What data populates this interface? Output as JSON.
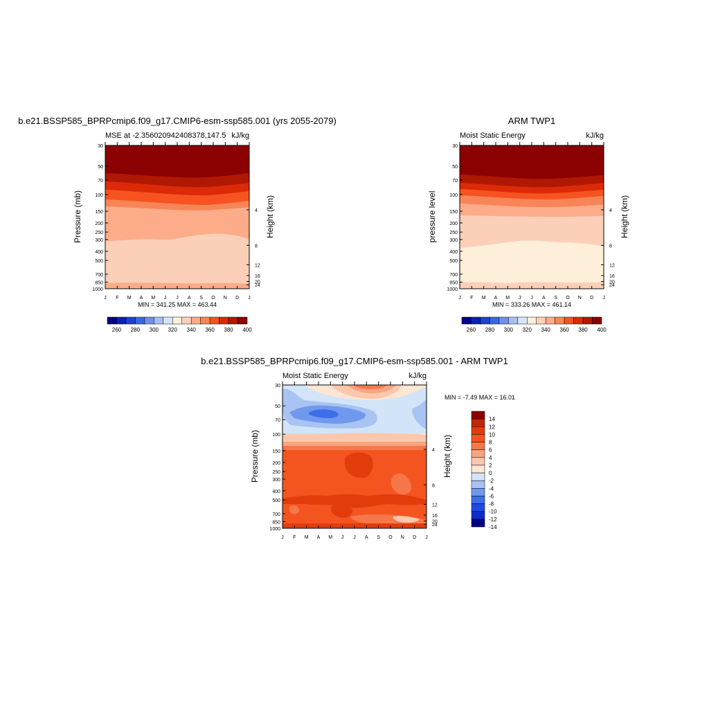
{
  "palette": {
    "model": [
      "#00008b",
      "#0a20b8",
      "#1c40d8",
      "#3a68e0",
      "#6f90e8",
      "#a6bff0",
      "#d5e6f8",
      "#feefdb",
      "#fcd0b8",
      "#fcac88",
      "#f88557",
      "#f65320",
      "#dc2a08",
      "#b01803",
      "#8b0000"
    ],
    "diff": [
      "#00008b",
      "#0c2dc8",
      "#1c4be6",
      "#3d6de8",
      "#7099ee",
      "#a9c3f2",
      "#d2e4f8",
      "#fde6d3",
      "#fbc8ad",
      "#f9a57f",
      "#f6784a",
      "#f45520",
      "#e33c0c",
      "#c02706",
      "#8b0000"
    ]
  },
  "months": [
    "J",
    "F",
    "M",
    "A",
    "M",
    "J",
    "J",
    "A",
    "S",
    "O",
    "N",
    "D",
    "J"
  ],
  "panels": [
    {
      "id": "model",
      "title": "b.e21.BSSP585_BPRPcmip6.f09_g17.CMIP6-esm-ssp585.001 (yrs 2055-2079)",
      "left_label": "MSE at -2.356020942408378,147.5",
      "right_label": "kJ/kg",
      "ylabel": "Pressure (mb)",
      "ylabel2": "Height (km)",
      "stats": "MIN = 341.25 MAX = 463.44",
      "colorbar_labels": [
        "260",
        "280",
        "300",
        "320",
        "340",
        "360",
        "380",
        "400"
      ]
    },
    {
      "id": "obs",
      "title": "ARM TWP1",
      "left_label": "Moist Static Energy",
      "right_label": "kJ/kg",
      "ylabel": "pressure level",
      "ylabel2": "Height (km)",
      "stats": "MIN = 333.26 MAX = 461.14",
      "colorbar_labels": [
        "260",
        "280",
        "300",
        "320",
        "340",
        "360",
        "380",
        "400"
      ]
    },
    {
      "id": "diff",
      "title": "b.e21.BSSP585_BPRPcmip6.f09_g17.CMIP6-esm-ssp585.001 - ARM TWP1",
      "left_label": "Moist Static Energy",
      "right_label": "kJ/kg",
      "ylabel": "Pressure (mb)",
      "ylabel2": "Height (km)",
      "stats": "MIN =  -7.49 MAX =  16.01",
      "colorbar_labels": [
        "14",
        "12",
        "10",
        "8",
        "6",
        "4",
        "2",
        "0",
        "-2",
        "-4",
        "-6",
        "-8",
        "-10",
        "-12",
        "-14"
      ]
    }
  ],
  "chart_data": [
    {
      "type": "heatmap",
      "title": "b.e21.BSSP585_BPRPcmip6.f09_g17.CMIP6-esm-ssp585.001 (yrs 2055-2079)",
      "subtitle": "MSE at -2.356020942408378,147.5",
      "units": "kJ/kg",
      "x": [
        "J",
        "F",
        "M",
        "A",
        "M",
        "J",
        "J",
        "A",
        "S",
        "O",
        "N",
        "D",
        "J"
      ],
      "y_pressure_ticks": [
        30,
        50,
        70,
        100,
        150,
        200,
        250,
        300,
        400,
        500,
        700,
        850,
        1000
      ],
      "y_height_ticks": [
        4,
        8,
        12,
        16,
        20,
        24
      ],
      "ylabel": "Pressure (mb)",
      "ylabel2": "Height (km)",
      "contour_levels": [
        260,
        270,
        280,
        290,
        300,
        310,
        320,
        330,
        340,
        350,
        360,
        370,
        380,
        390,
        400
      ],
      "min": 341.25,
      "max": 463.44
    },
    {
      "type": "heatmap",
      "title": "ARM TWP1",
      "subtitle": "Moist Static Energy",
      "units": "kJ/kg",
      "x": [
        "J",
        "F",
        "M",
        "A",
        "M",
        "J",
        "J",
        "A",
        "S",
        "O",
        "N",
        "D",
        "J"
      ],
      "y_pressure_ticks": [
        30,
        50,
        70,
        100,
        150,
        200,
        250,
        300,
        400,
        500,
        700,
        850,
        1000
      ],
      "y_height_ticks": [
        4,
        8,
        12,
        16,
        20,
        24
      ],
      "ylabel": "pressure level",
      "ylabel2": "Height (km)",
      "contour_levels": [
        260,
        270,
        280,
        290,
        300,
        310,
        320,
        330,
        340,
        350,
        360,
        370,
        380,
        390,
        400
      ],
      "min": 333.26,
      "max": 461.14
    },
    {
      "type": "heatmap",
      "title": "b.e21.BSSP585_BPRPcmip6.f09_g17.CMIP6-esm-ssp585.001 - ARM TWP1",
      "subtitle": "Moist Static Energy",
      "units": "kJ/kg",
      "x": [
        "J",
        "F",
        "M",
        "A",
        "M",
        "J",
        "J",
        "A",
        "S",
        "O",
        "N",
        "D",
        "J"
      ],
      "y_pressure_ticks": [
        30,
        50,
        70,
        100,
        150,
        200,
        250,
        300,
        400,
        500,
        700,
        850,
        1000
      ],
      "y_height_ticks": [
        4,
        8,
        12,
        16,
        20,
        24
      ],
      "ylabel": "Pressure (mb)",
      "ylabel2": "Height (km)",
      "contour_levels": [
        -14,
        -12,
        -10,
        -8,
        -6,
        -4,
        -2,
        0,
        2,
        4,
        6,
        8,
        10,
        12,
        14
      ],
      "min": -7.49,
      "max": 16.01
    }
  ]
}
